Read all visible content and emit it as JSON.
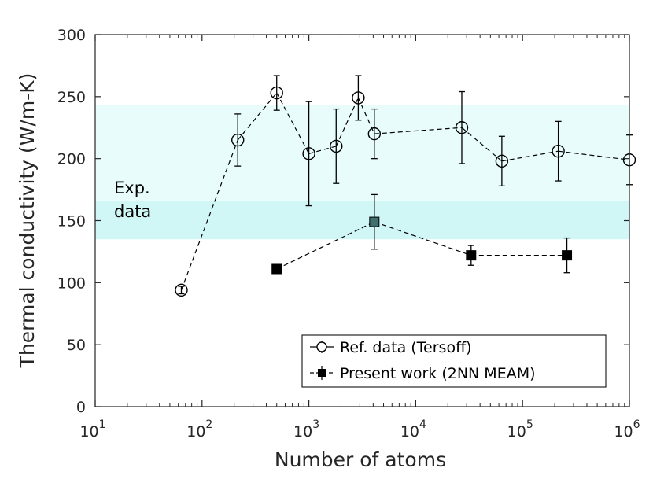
{
  "chart_data": {
    "type": "scatter",
    "title": "",
    "xlabel": "Number of atoms",
    "ylabel": "Thermal conductivity (W/m-K)",
    "xscale": "log",
    "xlim": [
      10,
      1000000
    ],
    "ylim": [
      0,
      300
    ],
    "x_ticks": [
      {
        "value": 10,
        "base": "10",
        "exp": "1"
      },
      {
        "value": 100,
        "base": "10",
        "exp": "2"
      },
      {
        "value": 1000,
        "base": "10",
        "exp": "3"
      },
      {
        "value": 10000,
        "base": "10",
        "exp": "4"
      },
      {
        "value": 100000,
        "base": "10",
        "exp": "5"
      },
      {
        "value": 1000000,
        "base": "10",
        "exp": "6"
      }
    ],
    "y_ticks": [
      "0",
      "50",
      "100",
      "150",
      "200",
      "250",
      "300"
    ],
    "bands": [
      {
        "name": "exp-band-wide",
        "y_range": [
          135,
          243
        ],
        "color": "#e8fcfc"
      },
      {
        "name": "exp-band-narrow",
        "y_range": [
          135,
          166
        ],
        "color": "#d0f6f6"
      }
    ],
    "band_label": [
      "Exp.",
      "data"
    ],
    "series": [
      {
        "name": "Ref. data (Tersoff)",
        "marker": "open-circle",
        "color": "#000000",
        "points": [
          {
            "x": 64,
            "y": 94,
            "err": 3
          },
          {
            "x": 216,
            "y": 215,
            "err": 21
          },
          {
            "x": 500,
            "y": 253,
            "err": 14
          },
          {
            "x": 1000,
            "y": 204,
            "err": 42
          },
          {
            "x": 1800,
            "y": 210,
            "err": 30
          },
          {
            "x": 2900,
            "y": 249,
            "err": 18
          },
          {
            "x": 4100,
            "y": 220,
            "err": 20
          },
          {
            "x": 27000,
            "y": 225,
            "err": 29
          },
          {
            "x": 64000,
            "y": 198,
            "err": 20
          },
          {
            "x": 216000,
            "y": 206,
            "err": 24
          },
          {
            "x": 1000000,
            "y": 199,
            "err": 20
          }
        ]
      },
      {
        "name": "Present work (2NN MEAM)",
        "marker": "filled-square",
        "color": "#000000",
        "points": [
          {
            "x": 500,
            "y": 111,
            "err": 3
          },
          {
            "x": 4100,
            "y": 149,
            "err": 22
          },
          {
            "x": 33000,
            "y": 122,
            "err": 8
          },
          {
            "x": 260000,
            "y": 122,
            "err": 14
          }
        ]
      }
    ],
    "legend": {
      "position": "bottom-right",
      "entries": [
        "Ref. data (Tersoff)",
        "Present work (2NN MEAM)"
      ]
    }
  }
}
